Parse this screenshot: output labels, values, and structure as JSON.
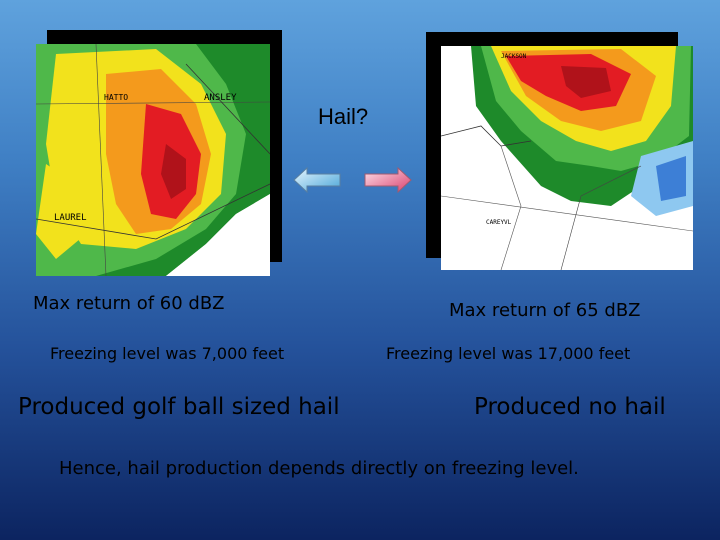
{
  "title": "Hail?",
  "left_panel": {
    "max_return": "Max return of 60 dBZ",
    "freezing_level": "Freezing level was 7,000 feet",
    "result": "Produced golf ball sized hail",
    "map_labels": [
      "ANSLEY",
      "LAUREL",
      "HATTO"
    ]
  },
  "right_panel": {
    "max_return": "Max return of 65 dBZ",
    "freezing_level": "Freezing level was 17,000 feet",
    "result": "Produced no hail",
    "map_labels": [
      "JACKSON",
      "CAREYVL"
    ]
  },
  "conclusion": "Hence, hail production depends directly on freezing level.",
  "arrows": {
    "left": {
      "icon": "left-arrow-icon",
      "color": "#9fd4f0"
    },
    "right": {
      "icon": "right-arrow-icon",
      "color": "#f08aa8"
    }
  }
}
